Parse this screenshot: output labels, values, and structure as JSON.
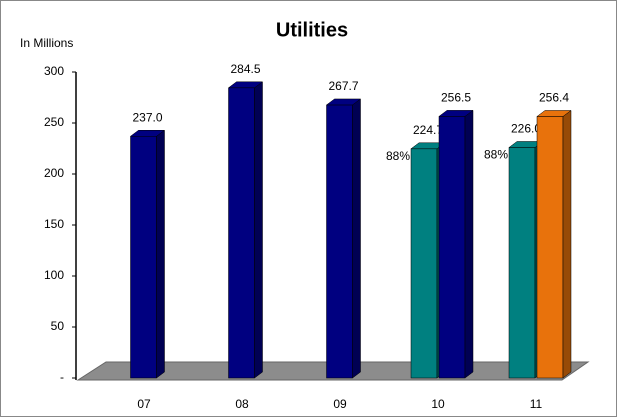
{
  "chart_data": {
    "type": "bar3d",
    "title": "Utilities",
    "y_label": "In Millions",
    "categories": [
      "07",
      "08",
      "09",
      "10",
      "11"
    ],
    "series": [
      {
        "color": "#008080",
        "values": [
          null,
          null,
          null,
          224.7,
          226.0
        ],
        "value_labels": [
          null,
          null,
          null,
          "224.7",
          "226.0"
        ],
        "percent_labels": [
          null,
          null,
          null,
          "88%",
          "88%"
        ]
      },
      {
        "color": "#000080",
        "values": [
          237.0,
          284.5,
          267.7,
          256.5,
          null
        ],
        "value_labels": [
          "237.0",
          "284.5",
          "267.7",
          "256.5",
          null
        ]
      },
      {
        "color": "#e8720c",
        "values": [
          null,
          null,
          null,
          null,
          256.4
        ],
        "value_labels": [
          null,
          null,
          null,
          null,
          "256.4"
        ]
      }
    ],
    "ylim": [
      0,
      300
    ],
    "yticks": [
      {
        "value": 0,
        "label": "-"
      },
      50,
      100,
      150,
      200,
      250,
      300
    ]
  }
}
